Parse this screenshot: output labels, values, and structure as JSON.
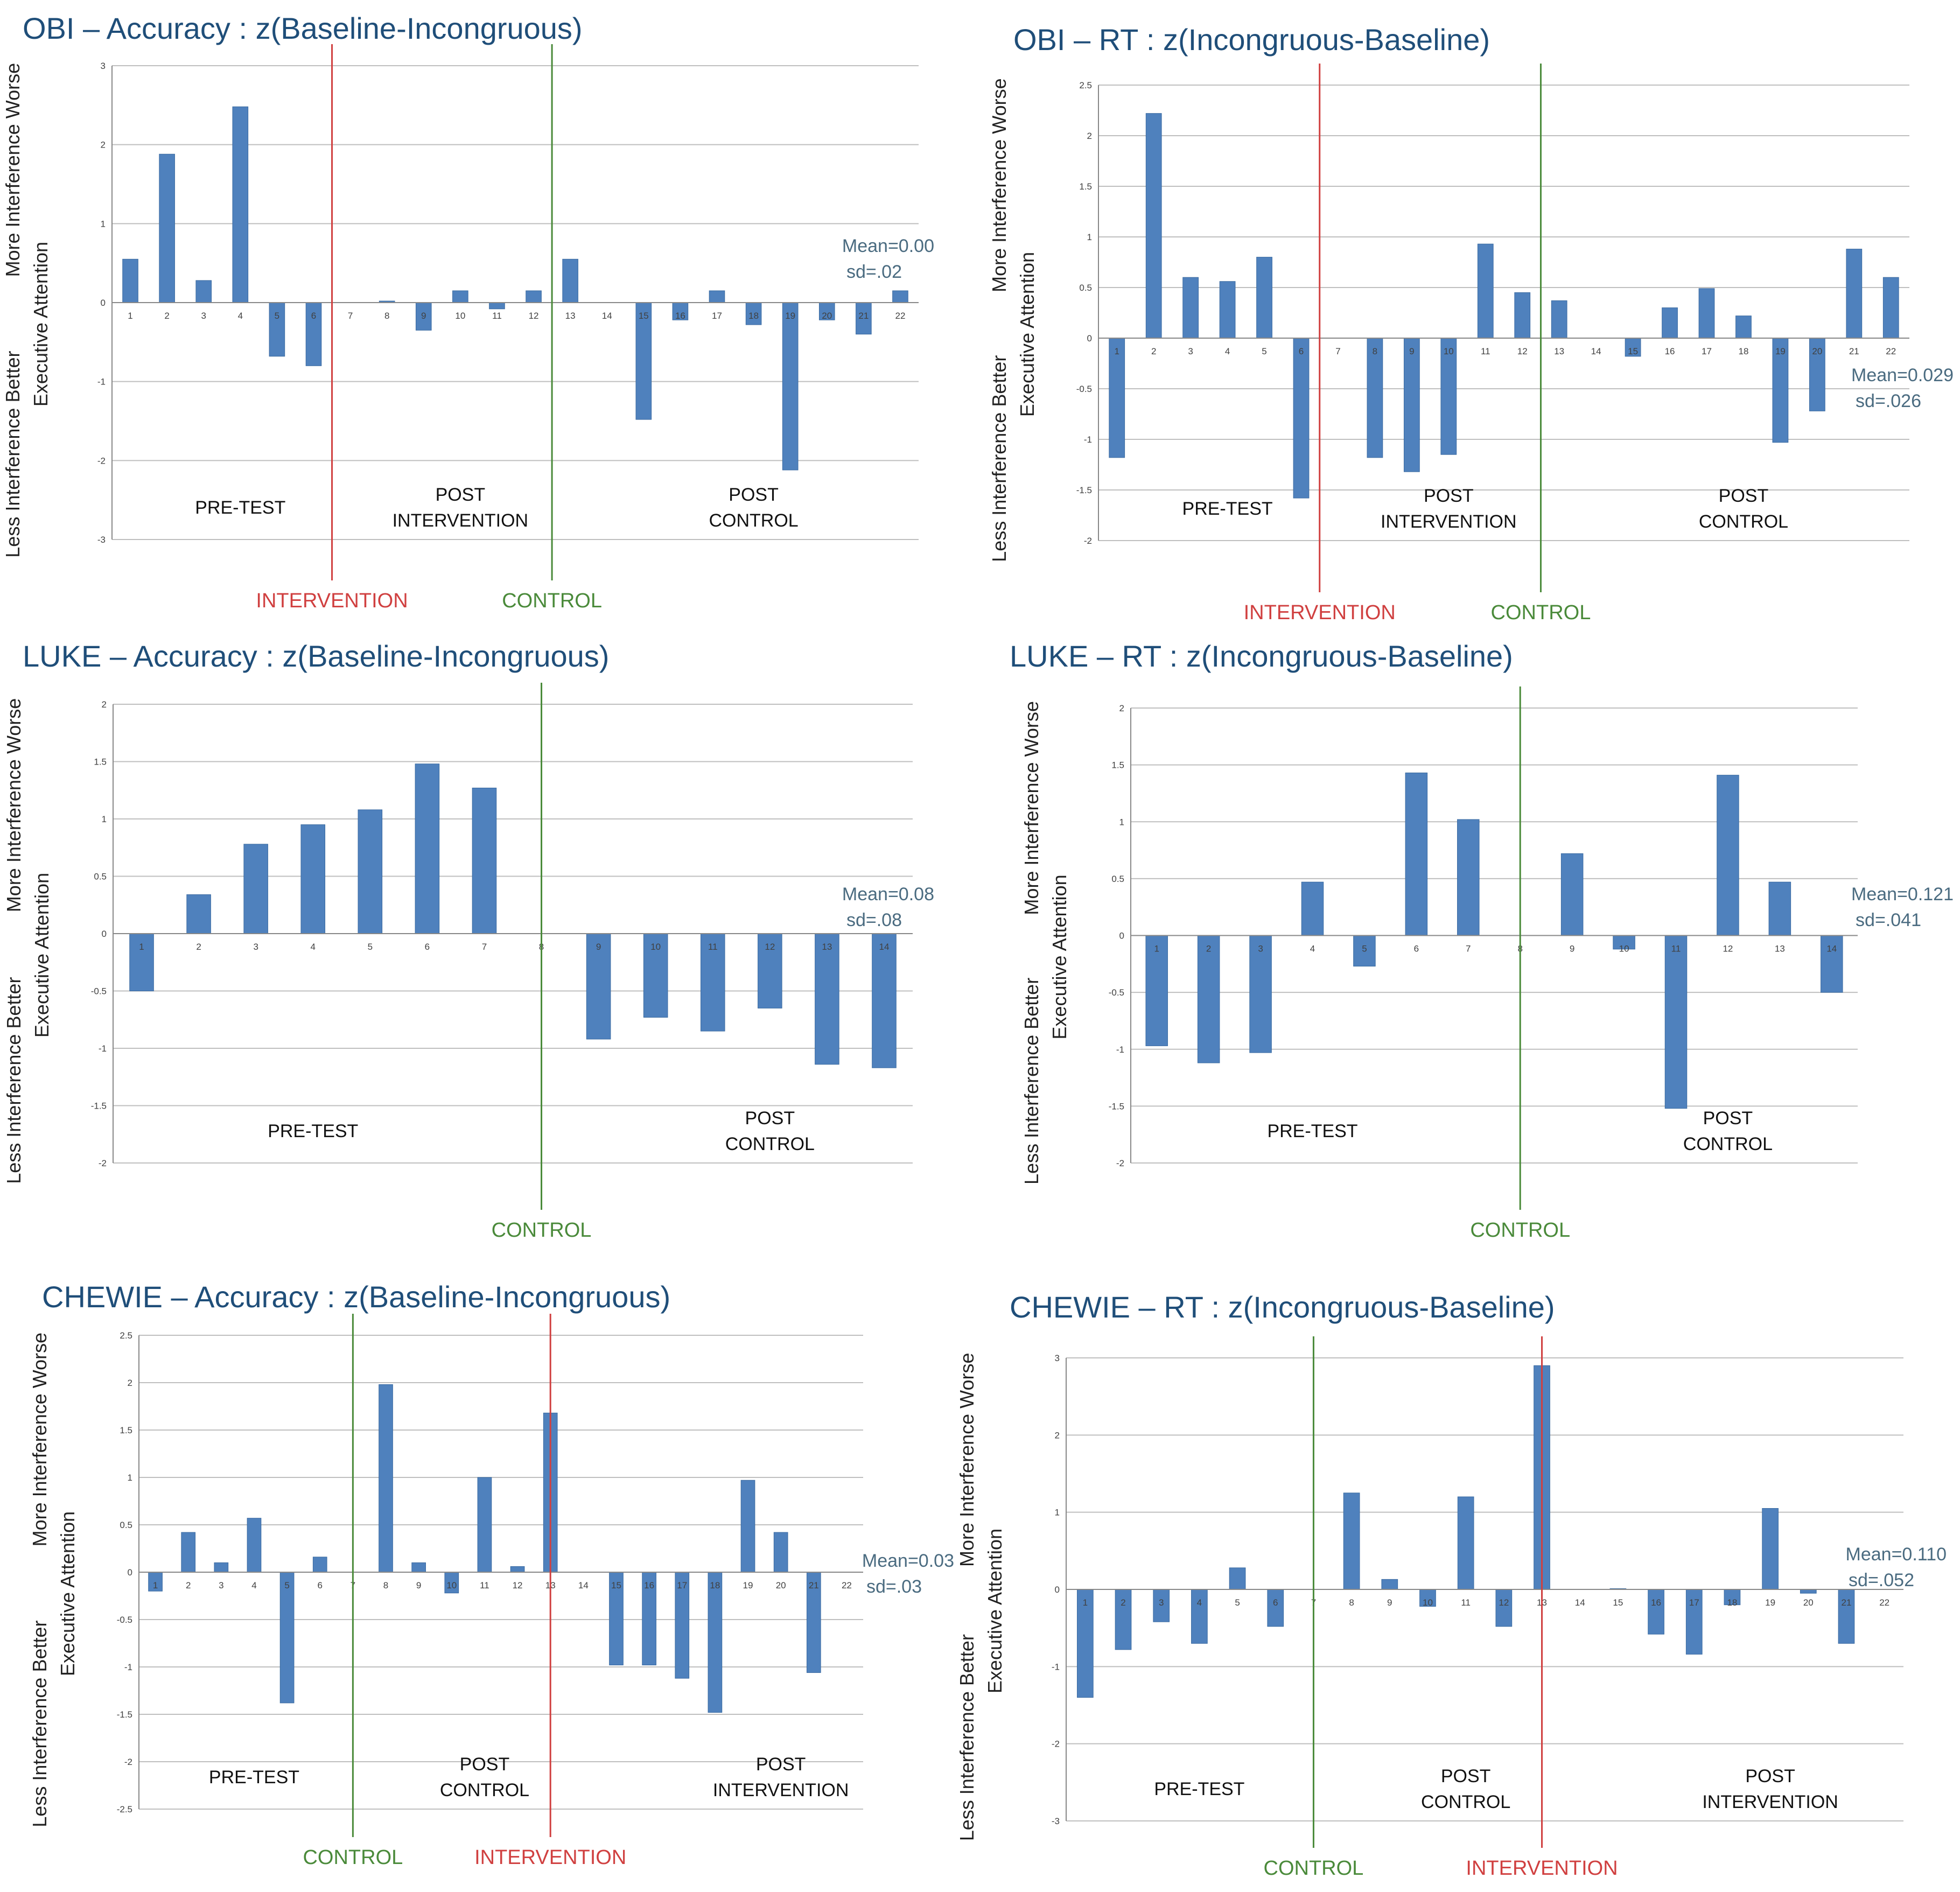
{
  "y_axis_labels": {
    "top": "More Interference Worse",
    "middle": "Executive Attention",
    "bottom": "Less Interference Better"
  },
  "colors": {
    "bar": "#4f81bd",
    "intervention": "#d04040",
    "control": "#4a8a3a",
    "title": "#1f4e79",
    "stat": "#4a6b80"
  },
  "chart_data": [
    {
      "id": "obi-acc",
      "type": "bar",
      "title": "OBI – Accuracy : z(Baseline-Incongruous)",
      "categories": [
        "1",
        "2",
        "3",
        "4",
        "5",
        "6",
        "7",
        "8",
        "9",
        "10",
        "11",
        "12",
        "13",
        "14",
        "15",
        "16",
        "17",
        "18",
        "19",
        "20",
        "21",
        "22"
      ],
      "values": [
        0.55,
        1.88,
        0.28,
        2.48,
        -0.68,
        -0.8,
        0,
        0.02,
        -0.35,
        0.15,
        -0.08,
        0.15,
        0.55,
        0,
        -1.48,
        -0.22,
        0.15,
        -0.28,
        -2.12,
        -0.22,
        -0.4,
        0.15
      ],
      "ylim": [
        -3,
        3
      ],
      "yticks": [
        "-3",
        "-2",
        "-1",
        "0",
        "1",
        "2",
        "3"
      ],
      "xlabel": "",
      "ylabel": "Executive Attention",
      "phases": [
        {
          "text1": "PRE-TEST",
          "text2": "",
          "at": 3.5
        },
        {
          "text1": "POST",
          "text2": "INTERVENTION",
          "at": 9.5
        },
        {
          "text1": "POST",
          "text2": "CONTROL",
          "at": 17.5
        }
      ],
      "markers": [
        {
          "label": "INTERVENTION",
          "after": 6,
          "color": "intervention"
        },
        {
          "label": "CONTROL",
          "after": 12,
          "color": "control"
        }
      ],
      "stats": {
        "mean": "Mean=0.00",
        "sd": "sd=.02"
      }
    },
    {
      "id": "obi-rt",
      "type": "bar",
      "title": "OBI – RT : z(Incongruous-Baseline)",
      "categories": [
        "1",
        "2",
        "3",
        "4",
        "5",
        "6",
        "7",
        "8",
        "9",
        "10",
        "11",
        "12",
        "13",
        "14",
        "15",
        "16",
        "17",
        "18",
        "19",
        "20",
        "21",
        "22"
      ],
      "values": [
        -1.18,
        2.22,
        0.6,
        0.56,
        0.8,
        -1.58,
        0,
        -1.18,
        -1.32,
        -1.15,
        0.93,
        0.45,
        0.37,
        0,
        -0.18,
        0.3,
        0.49,
        0.22,
        -1.03,
        -0.72,
        0.88,
        0.6
      ],
      "ylim": [
        -2,
        2.5
      ],
      "yticks": [
        "-2",
        "-1.5",
        "-1",
        "-0.5",
        "0",
        "0.5",
        "1",
        "1.5",
        "2",
        "2.5"
      ],
      "xlabel": "",
      "ylabel": "Executive Attention",
      "phases": [
        {
          "text1": "PRE-TEST",
          "text2": "",
          "at": 3.5
        },
        {
          "text1": "POST",
          "text2": "INTERVENTION",
          "at": 9.5
        },
        {
          "text1": "POST",
          "text2": "CONTROL",
          "at": 17.5
        }
      ],
      "markers": [
        {
          "label": "INTERVENTION",
          "after": 6,
          "color": "intervention"
        },
        {
          "label": "CONTROL",
          "after": 12,
          "color": "control"
        }
      ],
      "stats": {
        "mean": "Mean=0.029",
        "sd": "sd=.026"
      }
    },
    {
      "id": "luke-acc",
      "type": "bar",
      "title": "LUKE – Accuracy : z(Baseline-Incongruous)",
      "categories": [
        "1",
        "2",
        "3",
        "4",
        "5",
        "6",
        "7",
        "8",
        "9",
        "10",
        "11",
        "12",
        "13",
        "14"
      ],
      "values": [
        -0.5,
        0.34,
        0.78,
        0.95,
        1.08,
        1.48,
        1.27,
        0,
        -0.92,
        -0.73,
        -0.85,
        -0.65,
        -1.14,
        -1.17
      ],
      "ylim": [
        -2,
        2
      ],
      "yticks": [
        "-2",
        "-1.5",
        "-1",
        "-0.5",
        "0",
        "0.5",
        "1",
        "1.5",
        "2"
      ],
      "xlabel": "",
      "ylabel": "Executive Attention",
      "phases": [
        {
          "text1": "PRE-TEST",
          "text2": "",
          "at": 3.5
        },
        {
          "text1": "POST",
          "text2": "CONTROL",
          "at": 11.5
        }
      ],
      "markers": [
        {
          "label": "CONTROL",
          "after": 7.5,
          "color": "control"
        }
      ],
      "stats": {
        "mean": "Mean=0.08",
        "sd": "sd=.08"
      }
    },
    {
      "id": "luke-rt",
      "type": "bar",
      "title": "LUKE – RT : z(Incongruous-Baseline)",
      "categories": [
        "1",
        "2",
        "3",
        "4",
        "5",
        "6",
        "7",
        "8",
        "9",
        "10",
        "11",
        "12",
        "13",
        "14"
      ],
      "values": [
        -0.97,
        -1.12,
        -1.03,
        0.47,
        -0.27,
        1.43,
        1.02,
        0,
        0.72,
        -0.12,
        -1.52,
        1.41,
        0.47,
        -0.5
      ],
      "ylim": [
        -2,
        2
      ],
      "yticks": [
        "-2",
        "-1.5",
        "-1",
        "-0.5",
        "0",
        "0.5",
        "1",
        "1.5",
        "2"
      ],
      "xlabel": "",
      "ylabel": "Executive Attention",
      "phases": [
        {
          "text1": "PRE-TEST",
          "text2": "",
          "at": 3.5
        },
        {
          "text1": "POST",
          "text2": "CONTROL",
          "at": 11.5
        }
      ],
      "markers": [
        {
          "label": "CONTROL",
          "after": 7.5,
          "color": "control"
        }
      ],
      "stats": {
        "mean": "Mean=0.121",
        "sd": "sd=.041"
      }
    },
    {
      "id": "chewie-acc",
      "type": "bar",
      "title": "CHEWIE – Accuracy : z(Baseline-Incongruous)",
      "categories": [
        "1",
        "2",
        "3",
        "4",
        "5",
        "6",
        "7",
        "8",
        "9",
        "10",
        "11",
        "12",
        "13",
        "14",
        "15",
        "16",
        "17",
        "18",
        "19",
        "20",
        "21",
        "22"
      ],
      "values": [
        -0.2,
        0.42,
        0.1,
        0.57,
        -1.38,
        0.16,
        0,
        1.98,
        0.1,
        -0.22,
        1.0,
        0.06,
        1.68,
        0,
        -0.98,
        -0.98,
        -1.12,
        -1.48,
        0.97,
        0.42,
        -1.06,
        0
      ],
      "ylim": [
        -2.5,
        2.5
      ],
      "yticks": [
        "-2.5",
        "-2",
        "-1.5",
        "-1",
        "-0.5",
        "0",
        "0.5",
        "1",
        "1.5",
        "2",
        "2.5"
      ],
      "xlabel": "",
      "ylabel": "Executive Attention",
      "phases": [
        {
          "text1": "PRE-TEST",
          "text2": "",
          "at": 3.5
        },
        {
          "text1": "POST",
          "text2": "CONTROL",
          "at": 10.5
        },
        {
          "text1": "POST",
          "text2": "INTERVENTION",
          "at": 19.5
        }
      ],
      "markers": [
        {
          "label": "CONTROL",
          "after": 6.5,
          "color": "control"
        },
        {
          "label": "INTERVENTION",
          "after": 12.5,
          "color": "intervention"
        }
      ],
      "stats": {
        "mean": "Mean=0.03",
        "sd": "sd=.03"
      }
    },
    {
      "id": "chewie-rt",
      "type": "bar",
      "title": "CHEWIE – RT : z(Incongruous-Baseline)",
      "categories": [
        "1",
        "2",
        "3",
        "4",
        "5",
        "6",
        "7",
        "8",
        "9",
        "10",
        "11",
        "12",
        "13",
        "14",
        "15",
        "16",
        "17",
        "18",
        "19",
        "20",
        "21",
        "22"
      ],
      "values": [
        -1.4,
        -0.78,
        -0.42,
        -0.7,
        0.28,
        -0.48,
        0,
        1.25,
        0.13,
        -0.22,
        1.2,
        -0.48,
        2.9,
        0,
        0.01,
        -0.58,
        -0.84,
        -0.2,
        1.05,
        -0.05,
        -0.7,
        0
      ],
      "ylim": [
        -3,
        3
      ],
      "yticks": [
        "-3",
        "-2",
        "-1",
        "0",
        "1",
        "2",
        "3"
      ],
      "xlabel": "",
      "ylabel": "Executive Attention",
      "phases": [
        {
          "text1": "PRE-TEST",
          "text2": "",
          "at": 3.5
        },
        {
          "text1": "POST",
          "text2": "CONTROL",
          "at": 10.5
        },
        {
          "text1": "POST",
          "text2": "INTERVENTION",
          "at": 18.5
        }
      ],
      "markers": [
        {
          "label": "CONTROL",
          "after": 6.5,
          "color": "control"
        },
        {
          "label": "INTERVENTION",
          "after": 12.5,
          "color": "intervention"
        }
      ],
      "stats": {
        "mean": "Mean=0.110",
        "sd": "sd=.052"
      }
    }
  ]
}
